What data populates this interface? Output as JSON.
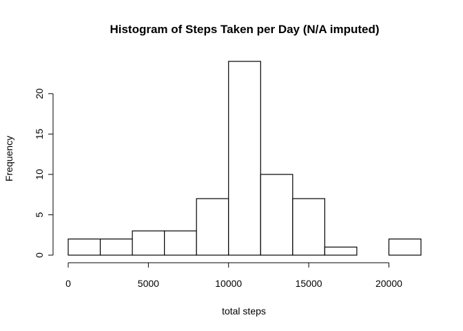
{
  "chart_data": {
    "type": "bar",
    "title": "Histogram of Steps Taken per Day (N/A imputed)",
    "xlabel": "total steps",
    "ylabel": "Frequency",
    "bin_edges": [
      0,
      2000,
      4000,
      6000,
      8000,
      10000,
      12000,
      14000,
      16000,
      18000,
      20000,
      22000
    ],
    "values": [
      2,
      2,
      3,
      3,
      7,
      24,
      10,
      7,
      1,
      0,
      2
    ],
    "xlim": [
      0,
      22000
    ],
    "ylim": [
      0,
      24
    ],
    "x_ticks": [
      0,
      5000,
      10000,
      15000,
      20000
    ],
    "y_ticks": [
      0,
      5,
      10,
      15,
      20
    ],
    "grid": false,
    "bar_fill": "#ffffff",
    "bar_stroke": "#000000"
  }
}
